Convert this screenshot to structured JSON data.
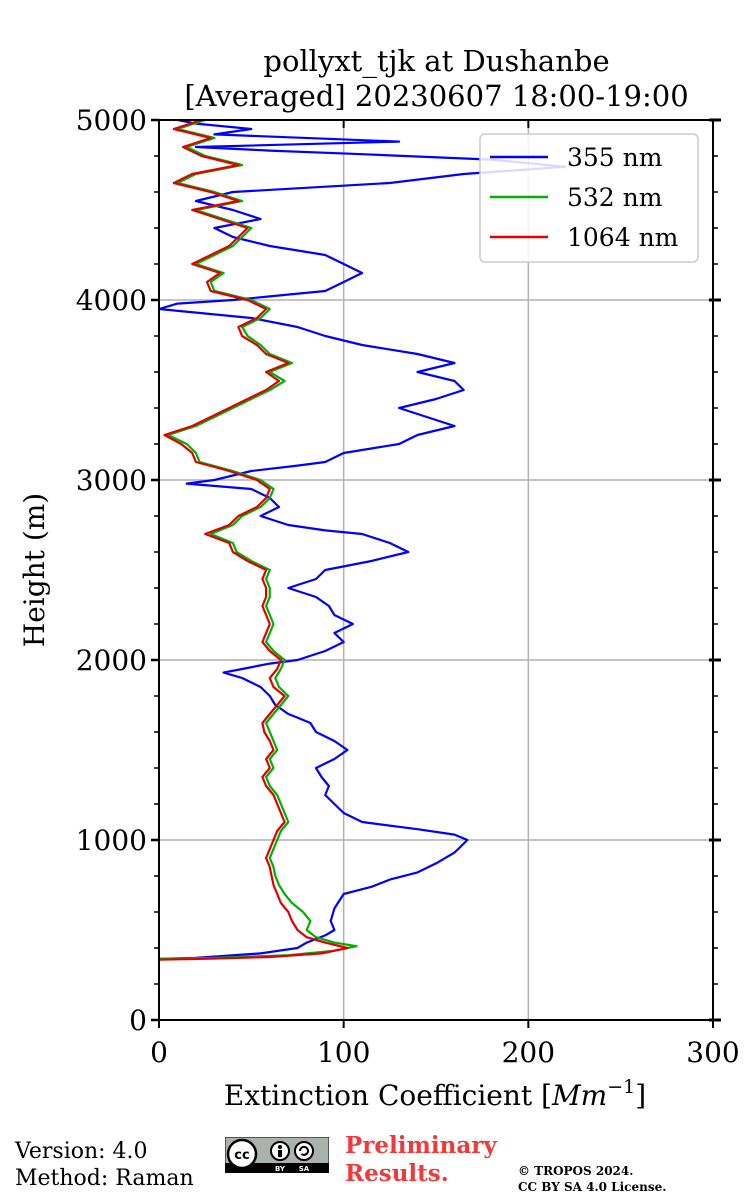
{
  "chart_data": {
    "type": "line",
    "title_line1": "pollyxt_tjk at Dushanbe",
    "title_line2": "[Averaged] 20230607 18:00-19:00",
    "xlabel_prefix": "Extinction Coefficient [",
    "xlabel_unit": "Mm",
    "xlabel_exp": "−1",
    "xlabel_suffix": "]",
    "ylabel": "Height (m)",
    "xlim": [
      0,
      300
    ],
    "ylim": [
      0,
      5000
    ],
    "xticks": [
      "0",
      "100",
      "200",
      "300"
    ],
    "yticks": [
      "0",
      "1000",
      "2000",
      "3000",
      "4000",
      "5000"
    ],
    "grid": true,
    "legend_position": "top-right",
    "series": [
      {
        "name": "355 nm",
        "color": "#0000ff",
        "points": [
          [
            0,
            340
          ],
          [
            20,
            345
          ],
          [
            55,
            370
          ],
          [
            75,
            400
          ],
          [
            80,
            430
          ],
          [
            90,
            470
          ],
          [
            95,
            500
          ],
          [
            93,
            550
          ],
          [
            95,
            620
          ],
          [
            100,
            700
          ],
          [
            115,
            740
          ],
          [
            125,
            780
          ],
          [
            140,
            820
          ],
          [
            150,
            870
          ],
          [
            160,
            930
          ],
          [
            165,
            980
          ],
          [
            167,
            1000
          ],
          [
            160,
            1030
          ],
          [
            140,
            1060
          ],
          [
            110,
            1100
          ],
          [
            100,
            1150
          ],
          [
            95,
            1200
          ],
          [
            90,
            1250
          ],
          [
            92,
            1300
          ],
          [
            88,
            1350
          ],
          [
            85,
            1400
          ],
          [
            95,
            1450
          ],
          [
            102,
            1500
          ],
          [
            95,
            1550
          ],
          [
            85,
            1600
          ],
          [
            82,
            1650
          ],
          [
            75,
            1680
          ],
          [
            70,
            1700
          ],
          [
            63,
            1750
          ],
          [
            60,
            1800
          ],
          [
            55,
            1850
          ],
          [
            45,
            1900
          ],
          [
            35,
            1930
          ],
          [
            45,
            1950
          ],
          [
            60,
            1980
          ],
          [
            75,
            2000
          ],
          [
            90,
            2050
          ],
          [
            100,
            2100
          ],
          [
            95,
            2150
          ],
          [
            105,
            2200
          ],
          [
            95,
            2250
          ],
          [
            92,
            2300
          ],
          [
            85,
            2350
          ],
          [
            70,
            2400
          ],
          [
            85,
            2450
          ],
          [
            90,
            2500
          ],
          [
            115,
            2550
          ],
          [
            135,
            2600
          ],
          [
            125,
            2650
          ],
          [
            110,
            2700
          ],
          [
            90,
            2720
          ],
          [
            70,
            2750
          ],
          [
            55,
            2800
          ],
          [
            65,
            2850
          ],
          [
            60,
            2900
          ],
          [
            50,
            2950
          ],
          [
            15,
            2980
          ],
          [
            30,
            3000
          ],
          [
            50,
            3050
          ],
          [
            75,
            3080
          ],
          [
            90,
            3100
          ],
          [
            100,
            3150
          ],
          [
            130,
            3200
          ],
          [
            140,
            3250
          ],
          [
            160,
            3300
          ],
          [
            145,
            3350
          ],
          [
            130,
            3400
          ],
          [
            150,
            3450
          ],
          [
            165,
            3500
          ],
          [
            160,
            3550
          ],
          [
            140,
            3600
          ],
          [
            160,
            3650
          ],
          [
            140,
            3700
          ],
          [
            110,
            3750
          ],
          [
            90,
            3800
          ],
          [
            75,
            3850
          ],
          [
            50,
            3900
          ],
          [
            0,
            3950
          ],
          [
            10,
            3980
          ],
          [
            40,
            4000
          ],
          [
            60,
            4020
          ],
          [
            90,
            4050
          ],
          [
            100,
            4100
          ],
          [
            110,
            4150
          ],
          [
            100,
            4200
          ],
          [
            90,
            4250
          ],
          [
            60,
            4300
          ],
          [
            40,
            4350
          ],
          [
            30,
            4400
          ],
          [
            55,
            4450
          ],
          [
            40,
            4500
          ],
          [
            20,
            4550
          ],
          [
            40,
            4600
          ],
          [
            125,
            4650
          ],
          [
            165,
            4700
          ],
          [
            220,
            4740
          ],
          [
            180,
            4780
          ],
          [
            110,
            4810
          ],
          [
            60,
            4830
          ],
          [
            20,
            4850
          ],
          [
            130,
            4880
          ],
          [
            30,
            4920
          ],
          [
            50,
            4950
          ],
          [
            20,
            4980
          ],
          [
            10,
            5000
          ]
        ]
      },
      {
        "name": "532 nm",
        "color": "#00b000",
        "points": [
          [
            0,
            340
          ],
          [
            30,
            345
          ],
          [
            70,
            360
          ],
          [
            95,
            385
          ],
          [
            107,
            410
          ],
          [
            95,
            430
          ],
          [
            85,
            460
          ],
          [
            80,
            500
          ],
          [
            82,
            550
          ],
          [
            78,
            600
          ],
          [
            72,
            650
          ],
          [
            68,
            700
          ],
          [
            65,
            750
          ],
          [
            63,
            800
          ],
          [
            62,
            850
          ],
          [
            60,
            900
          ],
          [
            62,
            950
          ],
          [
            64,
            1000
          ],
          [
            66,
            1050
          ],
          [
            70,
            1100
          ],
          [
            68,
            1150
          ],
          [
            66,
            1200
          ],
          [
            64,
            1250
          ],
          [
            60,
            1300
          ],
          [
            58,
            1350
          ],
          [
            62,
            1400
          ],
          [
            60,
            1450
          ],
          [
            64,
            1500
          ],
          [
            62,
            1550
          ],
          [
            60,
            1600
          ],
          [
            58,
            1650
          ],
          [
            62,
            1700
          ],
          [
            66,
            1750
          ],
          [
            70,
            1800
          ],
          [
            65,
            1850
          ],
          [
            63,
            1900
          ],
          [
            66,
            1950
          ],
          [
            68,
            2000
          ],
          [
            62,
            2050
          ],
          [
            58,
            2100
          ],
          [
            60,
            2150
          ],
          [
            62,
            2200
          ],
          [
            60,
            2250
          ],
          [
            58,
            2300
          ],
          [
            60,
            2350
          ],
          [
            60,
            2400
          ],
          [
            58,
            2450
          ],
          [
            60,
            2500
          ],
          [
            50,
            2550
          ],
          [
            42,
            2600
          ],
          [
            40,
            2650
          ],
          [
            28,
            2700
          ],
          [
            40,
            2750
          ],
          [
            45,
            2800
          ],
          [
            55,
            2850
          ],
          [
            60,
            2900
          ],
          [
            62,
            2950
          ],
          [
            55,
            3000
          ],
          [
            40,
            3050
          ],
          [
            22,
            3100
          ],
          [
            20,
            3150
          ],
          [
            15,
            3200
          ],
          [
            5,
            3250
          ],
          [
            20,
            3300
          ],
          [
            30,
            3350
          ],
          [
            40,
            3400
          ],
          [
            50,
            3450
          ],
          [
            60,
            3500
          ],
          [
            68,
            3550
          ],
          [
            60,
            3600
          ],
          [
            72,
            3650
          ],
          [
            60,
            3700
          ],
          [
            55,
            3750
          ],
          [
            48,
            3800
          ],
          [
            45,
            3850
          ],
          [
            55,
            3900
          ],
          [
            60,
            3950
          ],
          [
            50,
            4000
          ],
          [
            30,
            4050
          ],
          [
            28,
            4100
          ],
          [
            35,
            4150
          ],
          [
            20,
            4200
          ],
          [
            30,
            4250
          ],
          [
            40,
            4300
          ],
          [
            45,
            4350
          ],
          [
            50,
            4400
          ],
          [
            35,
            4450
          ],
          [
            20,
            4500
          ],
          [
            45,
            4550
          ],
          [
            30,
            4600
          ],
          [
            10,
            4650
          ],
          [
            20,
            4700
          ],
          [
            45,
            4750
          ],
          [
            25,
            4800
          ],
          [
            15,
            4850
          ],
          [
            30,
            4900
          ],
          [
            10,
            4950
          ],
          [
            25,
            5000
          ]
        ]
      },
      {
        "name": "1064 nm",
        "color": "#e00000",
        "points": [
          [
            0,
            335
          ],
          [
            25,
            340
          ],
          [
            60,
            350
          ],
          [
            88,
            370
          ],
          [
            102,
            400
          ],
          [
            90,
            430
          ],
          [
            80,
            460
          ],
          [
            75,
            500
          ],
          [
            72,
            550
          ],
          [
            70,
            600
          ],
          [
            66,
            650
          ],
          [
            64,
            700
          ],
          [
            62,
            750
          ],
          [
            61,
            800
          ],
          [
            60,
            850
          ],
          [
            58,
            900
          ],
          [
            60,
            950
          ],
          [
            62,
            1000
          ],
          [
            64,
            1050
          ],
          [
            68,
            1100
          ],
          [
            66,
            1150
          ],
          [
            64,
            1200
          ],
          [
            62,
            1250
          ],
          [
            58,
            1300
          ],
          [
            56,
            1350
          ],
          [
            60,
            1400
          ],
          [
            58,
            1450
          ],
          [
            62,
            1500
          ],
          [
            60,
            1550
          ],
          [
            57,
            1600
          ],
          [
            56,
            1650
          ],
          [
            60,
            1700
          ],
          [
            64,
            1750
          ],
          [
            68,
            1800
          ],
          [
            62,
            1850
          ],
          [
            60,
            1900
          ],
          [
            64,
            1950
          ],
          [
            66,
            2000
          ],
          [
            60,
            2050
          ],
          [
            56,
            2100
          ],
          [
            58,
            2150
          ],
          [
            60,
            2200
          ],
          [
            58,
            2250
          ],
          [
            56,
            2300
          ],
          [
            58,
            2350
          ],
          [
            58,
            2400
          ],
          [
            56,
            2450
          ],
          [
            58,
            2500
          ],
          [
            48,
            2550
          ],
          [
            40,
            2600
          ],
          [
            38,
            2650
          ],
          [
            25,
            2700
          ],
          [
            38,
            2750
          ],
          [
            43,
            2800
          ],
          [
            53,
            2850
          ],
          [
            58,
            2900
          ],
          [
            60,
            2950
          ],
          [
            53,
            3000
          ],
          [
            38,
            3050
          ],
          [
            20,
            3100
          ],
          [
            18,
            3150
          ],
          [
            12,
            3200
          ],
          [
            3,
            3250
          ],
          [
            18,
            3300
          ],
          [
            28,
            3350
          ],
          [
            38,
            3400
          ],
          [
            48,
            3450
          ],
          [
            58,
            3500
          ],
          [
            65,
            3550
          ],
          [
            58,
            3600
          ],
          [
            70,
            3650
          ],
          [
            58,
            3700
          ],
          [
            53,
            3750
          ],
          [
            45,
            3800
          ],
          [
            43,
            3850
          ],
          [
            53,
            3900
          ],
          [
            58,
            3950
          ],
          [
            48,
            4000
          ],
          [
            28,
            4050
          ],
          [
            26,
            4100
          ],
          [
            33,
            4150
          ],
          [
            18,
            4200
          ],
          [
            28,
            4250
          ],
          [
            38,
            4300
          ],
          [
            43,
            4350
          ],
          [
            48,
            4400
          ],
          [
            33,
            4450
          ],
          [
            18,
            4500
          ],
          [
            43,
            4550
          ],
          [
            28,
            4600
          ],
          [
            8,
            4650
          ],
          [
            18,
            4700
          ],
          [
            43,
            4750
          ],
          [
            23,
            4800
          ],
          [
            13,
            4850
          ],
          [
            28,
            4900
          ],
          [
            8,
            4950
          ],
          [
            23,
            5000
          ]
        ]
      }
    ]
  },
  "footer": {
    "version": "Version: 4.0",
    "method": "Method: Raman",
    "preliminary_line1": "Preliminary",
    "preliminary_line2": "Results.",
    "copyright_line1": "© TROPOS 2024.",
    "copyright_line2": "CC BY SA 4.0 License.",
    "badge_main": "cc",
    "badge_by": "BY",
    "badge_sa": "SA"
  }
}
